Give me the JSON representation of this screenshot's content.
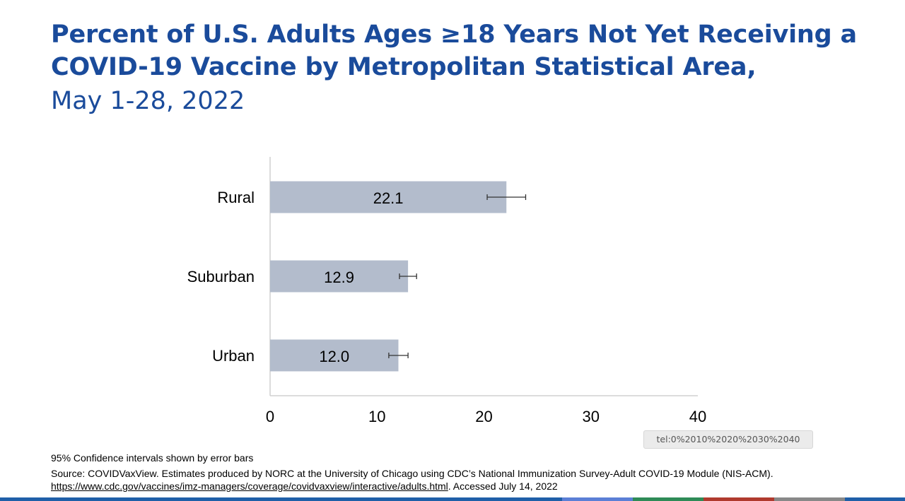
{
  "header": {
    "title_line1": "Percent of U.S. Adults Ages ≥18 Years Not Yet Receiving a",
    "title_line2": "COVID-19 Vaccine by Metropolitan Statistical Area,",
    "subtitle": "May 1-28, 2022"
  },
  "chart_data": {
    "type": "bar",
    "orientation": "horizontal",
    "categories": [
      "Rural",
      "Suburban",
      "Urban"
    ],
    "values": [
      22.1,
      12.9,
      12.0
    ],
    "value_labels": [
      "22.1",
      "12.9",
      "12.0"
    ],
    "ci_lower": [
      20.3,
      12.1,
      11.1
    ],
    "ci_upper": [
      23.9,
      13.7,
      12.9
    ],
    "xlim": [
      0,
      40
    ],
    "xticks": [
      0,
      10,
      20,
      30,
      40
    ],
    "xtick_labels": [
      "0",
      "10",
      "20",
      "30",
      "40"
    ],
    "title": "Percent of U.S. Adults Ages ≥18 Years Not Yet Receiving a COVID-19 Vaccine by Metropolitan Statistical Area, May 1-28, 2022",
    "xlabel": "",
    "ylabel": "",
    "grid": false,
    "colors": {
      "bar": "#b3bccc",
      "error": "#333333",
      "axis": "#d0d0d0"
    }
  },
  "tooltip": {
    "text": "tel:0%2010%2020%2030%2040"
  },
  "footer": {
    "ci_note": "95% Confidence intervals shown by error bars",
    "source_prefix": "Source: COVIDVaxView. Estimates produced by NORC at the University of Chicago using CDC’s National Immunization Survey-Adult COVID-19 Module (NIS-ACM). ",
    "source_link": "https://www.cdc.gov/vaccines/imz-managers/coverage/covidvaxview/interactive/adults.html",
    "source_suffix": ". Accessed July 14, 2022"
  },
  "colors": {
    "title": "#1a4b9b",
    "bottom_bar": [
      "#1f5fa8",
      "#5b7fd6",
      "#2e8b57",
      "#b03a2e",
      "#888888",
      "#1f5fa8"
    ]
  }
}
